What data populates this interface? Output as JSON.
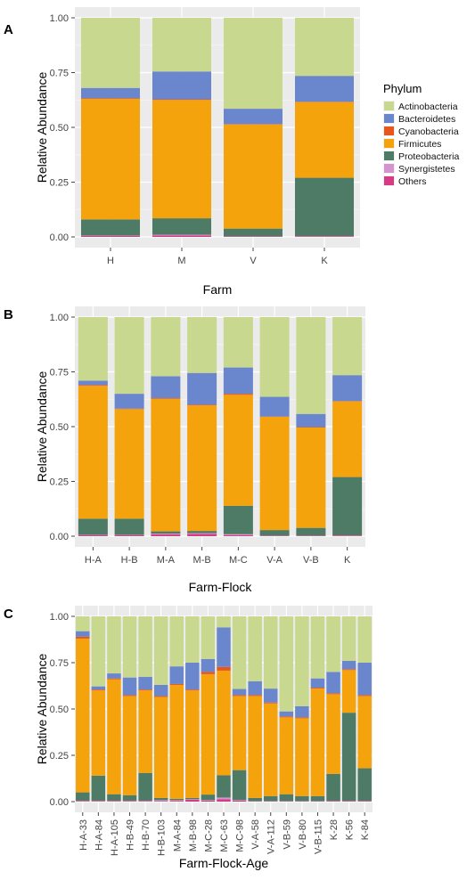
{
  "legend": {
    "title": "Phylum",
    "entries": [
      {
        "name": "Actinobacteria",
        "color": "#C8D88E"
      },
      {
        "name": "Bacteroidetes",
        "color": "#6A86CC"
      },
      {
        "name": "Cyanobacteria",
        "color": "#E8561E"
      },
      {
        "name": "Firmicutes",
        "color": "#F5A30C"
      },
      {
        "name": "Proteobacteria",
        "color": "#4E7B66"
      },
      {
        "name": "Synergistetes",
        "color": "#D495CE"
      },
      {
        "name": "Others",
        "color": "#D63C86"
      }
    ]
  },
  "chart_data": [
    {
      "panel": "A",
      "type": "bar",
      "stacked": true,
      "xlabel": "Farm",
      "ylabel": "Relative Abundance",
      "ylim": [
        0,
        1
      ],
      "yticks": [
        "0.00",
        "0.25",
        "0.50",
        "0.75",
        "1.00"
      ],
      "grid": true,
      "categories": [
        "H",
        "M",
        "V",
        "K"
      ],
      "series": [
        {
          "name": "Others",
          "values": [
            0.004,
            0.006,
            0.002,
            0.003
          ]
        },
        {
          "name": "Synergistetes",
          "values": [
            0.002,
            0.004,
            0.001,
            0.001
          ]
        },
        {
          "name": "Proteobacteria",
          "values": [
            0.074,
            0.075,
            0.035,
            0.266
          ]
        },
        {
          "name": "Firmicutes",
          "values": [
            0.55,
            0.54,
            0.475,
            0.345
          ]
        },
        {
          "name": "Cyanobacteria",
          "values": [
            0.003,
            0.003,
            0.002,
            0.002
          ]
        },
        {
          "name": "Bacteroidetes",
          "values": [
            0.047,
            0.127,
            0.07,
            0.118
          ]
        },
        {
          "name": "Actinobacteria",
          "values": [
            0.32,
            0.245,
            0.415,
            0.265
          ]
        }
      ]
    },
    {
      "panel": "B",
      "type": "bar",
      "stacked": true,
      "xlabel": "Farm-Flock",
      "ylabel": "Relative Abundance",
      "ylim": [
        0,
        1
      ],
      "yticks": [
        "0.00",
        "0.25",
        "0.50",
        "0.75",
        "1.00"
      ],
      "grid": true,
      "categories": [
        "H-A",
        "H-B",
        "M-A",
        "M-B",
        "M-C",
        "V-A",
        "V-B",
        "K"
      ],
      "series": [
        {
          "name": "Others",
          "values": [
            0.004,
            0.004,
            0.008,
            0.01,
            0.005,
            0.002,
            0.002,
            0.003
          ]
        },
        {
          "name": "Synergistetes",
          "values": [
            0.002,
            0.002,
            0.004,
            0.004,
            0.004,
            0.001,
            0.001,
            0.001
          ]
        },
        {
          "name": "Proteobacteria",
          "values": [
            0.074,
            0.074,
            0.01,
            0.01,
            0.13,
            0.025,
            0.035,
            0.266
          ]
        },
        {
          "name": "Firmicutes",
          "values": [
            0.606,
            0.5,
            0.605,
            0.573,
            0.506,
            0.517,
            0.458,
            0.345
          ]
        },
        {
          "name": "Cyanobacteria",
          "values": [
            0.004,
            0.002,
            0.003,
            0.003,
            0.005,
            0.001,
            0.002,
            0.002
          ]
        },
        {
          "name": "Bacteroidetes",
          "values": [
            0.02,
            0.068,
            0.1,
            0.145,
            0.12,
            0.09,
            0.06,
            0.118
          ]
        },
        {
          "name": "Actinobacteria",
          "values": [
            0.29,
            0.35,
            0.27,
            0.255,
            0.23,
            0.364,
            0.442,
            0.265
          ]
        }
      ]
    },
    {
      "panel": "C",
      "type": "bar",
      "stacked": true,
      "xlabel": "Farm-Flock-Age",
      "ylabel": "Relative Abundance",
      "ylim": [
        0,
        1
      ],
      "yticks": [
        "0.00",
        "0.25",
        "0.50",
        "0.75",
        "1.00"
      ],
      "grid": true,
      "categories": [
        "H-A-33",
        "H-A-84",
        "H-A-105",
        "H-B-49",
        "H-B-70",
        "H-B-103",
        "M-A-84",
        "M-B-98",
        "M-C-28",
        "M-C-63",
        "M-C-98",
        "V-A-58",
        "V-A-112",
        "V-B-59",
        "V-B-80",
        "V-B-115",
        "K-28",
        "K-56",
        "K-84"
      ],
      "series": [
        {
          "name": "Others",
          "values": [
            0.003,
            0.003,
            0.003,
            0.003,
            0.003,
            0.003,
            0.004,
            0.01,
            0.005,
            0.012,
            0.005,
            0.002,
            0.002,
            0.002,
            0.002,
            0.002,
            0.003,
            0.003,
            0.003
          ]
        },
        {
          "name": "Synergistetes",
          "values": [
            0.002,
            0.002,
            0.002,
            0.002,
            0.002,
            0.005,
            0.004,
            0.003,
            0.003,
            0.01,
            0.003,
            0.001,
            0.001,
            0.001,
            0.001,
            0.001,
            0.001,
            0.001,
            0.001
          ]
        },
        {
          "name": "Proteobacteria",
          "values": [
            0.045,
            0.135,
            0.035,
            0.03,
            0.15,
            0.012,
            0.007,
            0.007,
            0.03,
            0.12,
            0.162,
            0.017,
            0.027,
            0.037,
            0.027,
            0.027,
            0.146,
            0.476,
            0.176
          ]
        },
        {
          "name": "Firmicutes",
          "values": [
            0.83,
            0.46,
            0.62,
            0.535,
            0.445,
            0.545,
            0.615,
            0.58,
            0.65,
            0.565,
            0.4,
            0.55,
            0.5,
            0.415,
            0.42,
            0.58,
            0.43,
            0.23,
            0.39
          ]
        },
        {
          "name": "Cyanobacteria",
          "values": [
            0.01,
            0.005,
            0.005,
            0.005,
            0.005,
            0.005,
            0.005,
            0.005,
            0.012,
            0.02,
            0.005,
            0.005,
            0.005,
            0.005,
            0.005,
            0.005,
            0.005,
            0.005,
            0.005
          ]
        },
        {
          "name": "Bacteroidetes",
          "values": [
            0.03,
            0.017,
            0.027,
            0.095,
            0.068,
            0.06,
            0.095,
            0.145,
            0.07,
            0.213,
            0.033,
            0.075,
            0.075,
            0.027,
            0.06,
            0.05,
            0.115,
            0.045,
            0.175
          ]
        },
        {
          "name": "Actinobacteria",
          "values": [
            0.08,
            0.378,
            0.308,
            0.33,
            0.327,
            0.37,
            0.27,
            0.25,
            0.23,
            0.06,
            0.392,
            0.35,
            0.39,
            0.513,
            0.485,
            0.335,
            0.3,
            0.24,
            0.25
          ]
        }
      ]
    }
  ]
}
